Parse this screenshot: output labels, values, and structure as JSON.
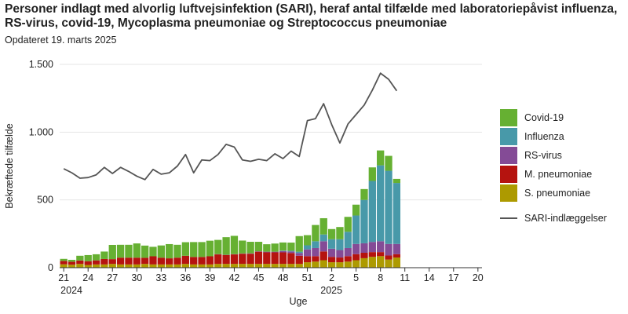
{
  "header": {
    "title": "Personer indlagt med alvorlig luftvejsinfektion (SARI), heraf antal tilfælde med laboratoriepåvist influenza, RS-virus, covid-19, Mycoplasma pneumoniae og Streptococcus pneumoniae",
    "subtitle": "Opdateret 19. marts 2025"
  },
  "chart_data": {
    "type": "bar",
    "stacked": true,
    "title": "Personer indlagt med alvorlig luftvejsinfektion (SARI), heraf antal tilfælde med laboratoriepåvist influenza, RS-virus, covid-19, Mycoplasma pneumoniae og Streptococcus pneumoniae",
    "subtitle": "Opdateret 19. marts 2025",
    "xlabel": "Uge",
    "ylabel": "Bekræftede tilfælde",
    "ylim": [
      0,
      1500
    ],
    "yticks": [
      0,
      500,
      1000,
      1500
    ],
    "ytick_labels": [
      "0",
      "500",
      "1.000",
      "1.500"
    ],
    "xtick_labels": [
      "21",
      "24",
      "27",
      "30",
      "33",
      "36",
      "39",
      "42",
      "45",
      "48",
      "51",
      "2",
      "5",
      "8",
      "11",
      "14",
      "17",
      "20"
    ],
    "year_labels": [
      {
        "label": "2024",
        "week_index": 0
      },
      {
        "label": "2025",
        "week_index": 32
      }
    ],
    "grid": "horizontal",
    "legend_position": "right",
    "weeks": [
      "21",
      "22",
      "23",
      "24",
      "25",
      "26",
      "27",
      "28",
      "29",
      "30",
      "31",
      "32",
      "33",
      "34",
      "35",
      "36",
      "37",
      "38",
      "39",
      "40",
      "41",
      "42",
      "43",
      "44",
      "45",
      "46",
      "47",
      "48",
      "49",
      "50",
      "51",
      "52",
      "1",
      "2",
      "3",
      "4",
      "5",
      "6",
      "7",
      "8",
      "9",
      "10",
      "11",
      "12",
      "13",
      "14",
      "15",
      "16",
      "17",
      "18",
      "19",
      "20"
    ],
    "series": [
      {
        "name": "S. pneumoniae",
        "color": "#ad9a00",
        "values": [
          25,
          22,
          28,
          20,
          24,
          24,
          28,
          24,
          24,
          24,
          28,
          24,
          24,
          24,
          24,
          28,
          24,
          24,
          24,
          28,
          28,
          28,
          28,
          28,
          28,
          28,
          28,
          28,
          28,
          28,
          40,
          45,
          55,
          40,
          40,
          45,
          55,
          70,
          80,
          85,
          60,
          75,
          0,
          0,
          0,
          0,
          0,
          0,
          0,
          0,
          0,
          0
        ]
      },
      {
        "name": "M. pneumoniae",
        "color": "#b5130f",
        "values": [
          25,
          22,
          25,
          28,
          30,
          40,
          35,
          50,
          50,
          50,
          45,
          60,
          50,
          45,
          50,
          60,
          55,
          55,
          60,
          70,
          65,
          70,
          75,
          75,
          90,
          85,
          85,
          85,
          80,
          60,
          45,
          40,
          65,
          40,
          35,
          40,
          45,
          40,
          35,
          30,
          30,
          25,
          0,
          0,
          0,
          0,
          0,
          0,
          0,
          0,
          0,
          0
        ]
      },
      {
        "name": "RS-virus",
        "color": "#844b96",
        "values": [
          0,
          0,
          0,
          0,
          0,
          0,
          0,
          0,
          0,
          0,
          0,
          0,
          0,
          0,
          0,
          0,
          0,
          0,
          0,
          2,
          2,
          2,
          2,
          3,
          3,
          5,
          5,
          10,
          12,
          20,
          50,
          60,
          75,
          60,
          55,
          60,
          75,
          70,
          75,
          80,
          85,
          75,
          0,
          0,
          0,
          0,
          0,
          0,
          0,
          0,
          0,
          0
        ]
      },
      {
        "name": "Influenza",
        "color": "#4899a9",
        "values": [
          0,
          0,
          0,
          0,
          0,
          0,
          0,
          0,
          0,
          0,
          0,
          0,
          0,
          0,
          0,
          0,
          0,
          0,
          0,
          0,
          0,
          0,
          0,
          0,
          0,
          0,
          0,
          3,
          5,
          10,
          30,
          50,
          50,
          70,
          80,
          120,
          210,
          320,
          450,
          560,
          540,
          450,
          0,
          0,
          0,
          0,
          0,
          0,
          0,
          0,
          0,
          0
        ]
      },
      {
        "name": "Covid-19",
        "color": "#66b032",
        "values": [
          15,
          14,
          35,
          45,
          45,
          55,
          105,
          95,
          95,
          105,
          90,
          70,
          90,
          105,
          95,
          100,
          110,
          110,
          115,
          105,
          130,
          135,
          95,
          85,
          70,
          55,
          60,
          60,
          60,
          115,
          75,
          120,
          120,
          75,
          90,
          110,
          80,
          80,
          100,
          110,
          110,
          30,
          0,
          0,
          0,
          0,
          0,
          0,
          0,
          0,
          0,
          0
        ]
      },
      {
        "name": "SARI-indlæggelser",
        "type": "line",
        "color": "#555555",
        "values": [
          730,
          700,
          660,
          665,
          685,
          740,
          695,
          740,
          710,
          675,
          650,
          725,
          690,
          700,
          750,
          835,
          700,
          795,
          790,
          835,
          910,
          890,
          795,
          785,
          800,
          790,
          840,
          805,
          860,
          820,
          1085,
          1100,
          1210,
          1055,
          920,
          1060,
          1130,
          1200,
          1310,
          1435,
          1390,
          1305,
          null,
          null,
          null,
          null,
          null,
          null,
          null,
          null,
          null,
          null
        ]
      }
    ]
  }
}
